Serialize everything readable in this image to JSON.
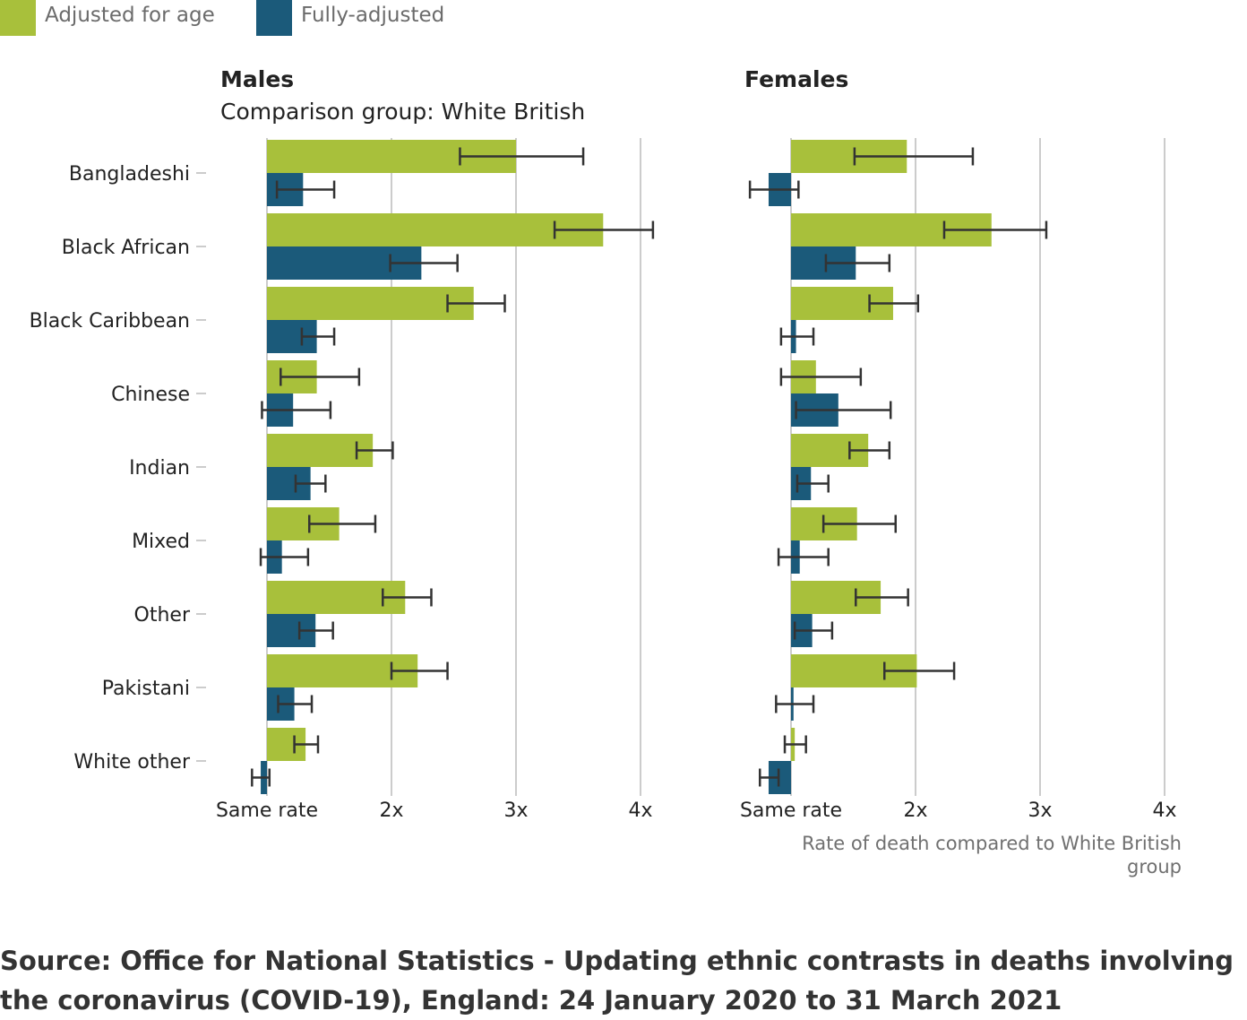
{
  "legend": [
    {
      "label": "Adjusted for age",
      "color": "#a8c03b"
    },
    {
      "label": "Fully-adjusted",
      "color": "#1b5a7a"
    }
  ],
  "chart_data": {
    "type": "bar",
    "orientation": "horizontal",
    "categories": [
      "Bangladeshi",
      "Black African",
      "Black Caribbean",
      "Chinese",
      "Indian",
      "Mixed",
      "Other",
      "Pakistani",
      "White other"
    ],
    "x_ticks": [
      {
        "value": 1,
        "label": "Same rate"
      },
      {
        "value": 2,
        "label": "2x"
      },
      {
        "value": 3,
        "label": "3x"
      },
      {
        "value": 4,
        "label": "4x"
      }
    ],
    "xlim": [
      0.6,
      4.1
    ],
    "xlabel": "Rate of death compared to White British group",
    "grid": true,
    "error_bars": true,
    "panels": [
      {
        "title": "Males",
        "subtitle": "Comparison group: White British",
        "series": [
          {
            "name": "Adjusted for age",
            "values": [
              3.0,
              3.7,
              2.66,
              1.4,
              1.85,
              1.58,
              2.11,
              2.21,
              1.31
            ],
            "ci_low": [
              2.55,
              3.31,
              2.45,
              1.11,
              1.72,
              1.34,
              1.93,
              2.0,
              1.22
            ],
            "ci_high": [
              3.54,
              4.14,
              2.91,
              1.74,
              2.01,
              1.87,
              2.32,
              2.45,
              1.41
            ]
          },
          {
            "name": "Fully-adjusted",
            "values": [
              1.29,
              2.24,
              1.4,
              1.21,
              1.35,
              1.12,
              1.39,
              1.22,
              0.95
            ],
            "ci_low": [
              1.08,
              1.99,
              1.28,
              0.96,
              1.23,
              0.95,
              1.26,
              1.09,
              0.88
            ],
            "ci_high": [
              1.54,
              2.53,
              1.54,
              1.51,
              1.47,
              1.33,
              1.53,
              1.36,
              1.02
            ]
          }
        ]
      },
      {
        "title": "Females",
        "subtitle": "",
        "series": [
          {
            "name": "Adjusted for age",
            "values": [
              1.93,
              2.61,
              1.82,
              1.2,
              1.62,
              1.53,
              1.72,
              2.01,
              1.03
            ],
            "ci_low": [
              1.51,
              2.23,
              1.63,
              0.92,
              1.47,
              1.26,
              1.52,
              1.75,
              0.95
            ],
            "ci_high": [
              2.46,
              3.05,
              2.02,
              1.56,
              1.79,
              1.84,
              1.94,
              2.31,
              1.12
            ]
          },
          {
            "name": "Fully-adjusted",
            "values": [
              0.82,
              1.52,
              1.04,
              1.38,
              1.16,
              1.07,
              1.17,
              1.02,
              0.82
            ],
            "ci_low": [
              0.67,
              1.28,
              0.92,
              1.04,
              1.05,
              0.9,
              1.03,
              0.88,
              0.75
            ],
            "ci_high": [
              1.06,
              1.79,
              1.18,
              1.8,
              1.3,
              1.3,
              1.33,
              1.18,
              0.9
            ]
          }
        ]
      }
    ]
  },
  "source": "Source: Office for National Statistics - Updating ethnic contrasts in deaths involving the coronavirus (COVID-19), England: 24 January 2020 to 31 March 2021"
}
